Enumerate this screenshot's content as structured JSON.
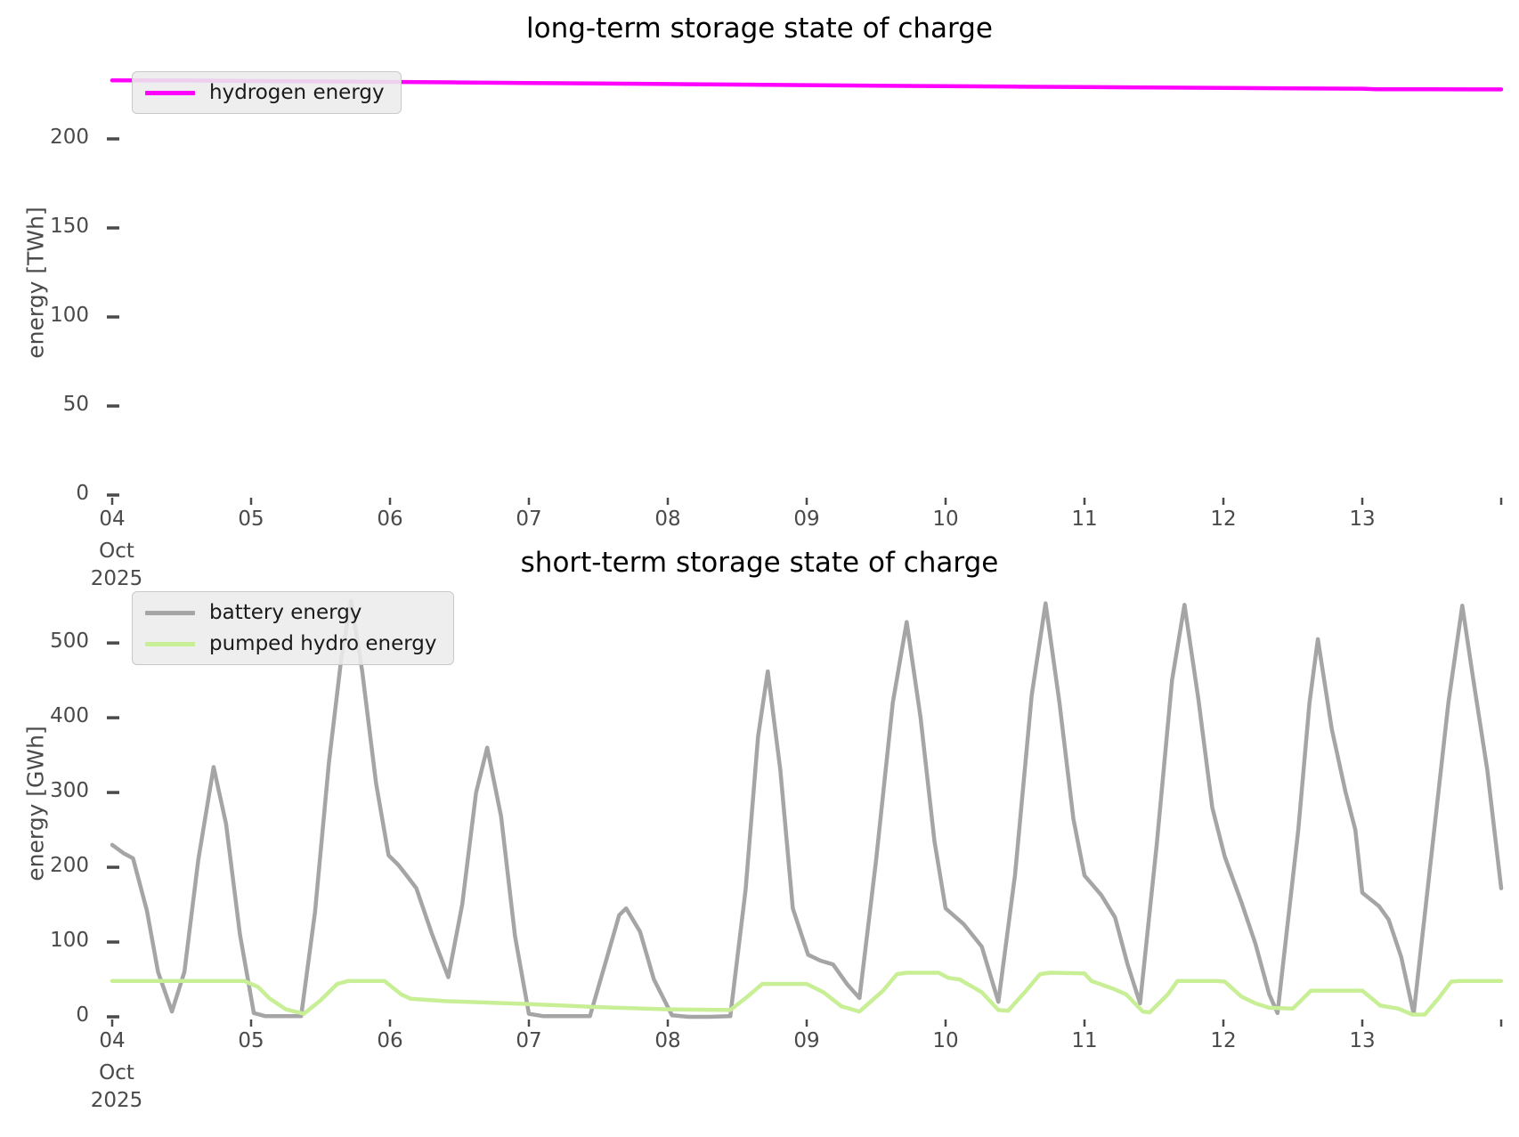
{
  "colors": {
    "hydrogen": "#ff00ff",
    "battery": "#a5a5a5",
    "pumped_hydro": "#c8ef96",
    "tick_label": "#4a4a4a",
    "title": "#000000",
    "legend_bg": "#ececec",
    "legend_border": "#c9c9c9"
  },
  "chart_data": [
    {
      "type": "line",
      "title": "long-term storage state of charge",
      "ylabel": "energy [TWh]",
      "x_unit": "days since 2025-10-04 00:00",
      "x_tick_labels": [
        "04",
        "05",
        "06",
        "07",
        "08",
        "09",
        "10",
        "11",
        "12",
        "13"
      ],
      "x_first_tick_extra": [
        "Oct",
        "2025"
      ],
      "yticks": [
        0,
        50,
        100,
        150,
        200
      ],
      "xlim_days": [
        0,
        10
      ],
      "ylim": [
        0,
        240.5
      ],
      "grid": false,
      "legend_position": "upper-left",
      "series": [
        {
          "name": "hydrogen energy",
          "color_key": "hydrogen",
          "x": [
            0,
            0.5,
            1,
            1.5,
            2,
            2.5,
            3,
            3.5,
            4,
            4.5,
            5,
            5.5,
            6,
            6.5,
            7,
            7.5,
            8,
            8.5,
            9,
            9.1,
            9.5,
            10
          ],
          "values": [
            232.9,
            232.8,
            232.5,
            232.3,
            232.0,
            231.7,
            231.4,
            231.1,
            230.8,
            230.5,
            230.2,
            229.9,
            229.6,
            229.35,
            229.1,
            228.85,
            228.6,
            228.4,
            228.2,
            227.9,
            227.85,
            227.8
          ]
        }
      ]
    },
    {
      "type": "line",
      "title": "short-term storage state of charge",
      "ylabel": "energy [GWh]",
      "x_unit": "days since 2025-10-04 00:00",
      "x_tick_labels": [
        "04",
        "05",
        "06",
        "07",
        "08",
        "09",
        "10",
        "11",
        "12",
        "13"
      ],
      "x_first_tick_extra": [
        "Oct",
        "2025"
      ],
      "yticks": [
        0,
        100,
        200,
        300,
        400,
        500
      ],
      "xlim_days": [
        0,
        10
      ],
      "ylim": [
        0,
        574
      ],
      "grid": false,
      "legend_position": "upper-left",
      "series": [
        {
          "name": "battery energy",
          "color_key": "battery",
          "x": [
            0.0,
            0.08,
            0.15,
            0.25,
            0.33,
            0.43,
            0.52,
            0.62,
            0.73,
            0.82,
            0.92,
            1.02,
            1.1,
            1.25,
            1.36,
            1.46,
            1.56,
            1.65,
            1.72,
            1.8,
            1.9,
            1.99,
            2.06,
            2.12,
            2.19,
            2.3,
            2.42,
            2.52,
            2.62,
            2.7,
            2.8,
            2.9,
            3.0,
            3.1,
            3.3,
            3.44,
            3.56,
            3.65,
            3.7,
            3.8,
            3.9,
            4.03,
            4.15,
            4.3,
            4.45,
            4.56,
            4.65,
            4.72,
            4.81,
            4.9,
            5.01,
            5.1,
            5.19,
            5.29,
            5.38,
            5.5,
            5.62,
            5.72,
            5.82,
            5.92,
            6.0,
            6.13,
            6.26,
            6.38,
            6.5,
            6.62,
            6.72,
            6.82,
            6.92,
            7.0,
            7.12,
            7.22,
            7.31,
            7.4,
            7.52,
            7.63,
            7.72,
            7.82,
            7.92,
            8.01,
            8.13,
            8.23,
            8.33,
            8.39,
            8.54,
            8.62,
            8.68,
            8.78,
            8.88,
            8.95,
            9.0,
            9.12,
            9.19,
            9.28,
            9.37,
            9.5,
            9.62,
            9.72,
            9.8,
            9.9,
            10.0
          ],
          "values": [
            230,
            219,
            212,
            142,
            60,
            7,
            60,
            210,
            334,
            258,
            110,
            5,
            1,
            1,
            1,
            140,
            340,
            480,
            556,
            462,
            312,
            216,
            203,
            189,
            172,
            112,
            53,
            150,
            300,
            360,
            268,
            108,
            4,
            1,
            1,
            1,
            78,
            136,
            145,
            114,
            50,
            2,
            0,
            0,
            1,
            170,
            375,
            462,
            330,
            145,
            83,
            75,
            70,
            44,
            25,
            210,
            420,
            528,
            400,
            235,
            145,
            124,
            94,
            20,
            190,
            430,
            553,
            420,
            265,
            189,
            163,
            133,
            70,
            18,
            230,
            450,
            551,
            425,
            280,
            214,
            153,
            98,
            30,
            5,
            251,
            420,
            505,
            385,
            300,
            250,
            166,
            148,
            130,
            80,
            4,
            220,
            420,
            550,
            450,
            330,
            172
          ]
        },
        {
          "name": "pumped hydro energy",
          "color_key": "pumped_hydro",
          "x": [
            0.0,
            0.95,
            1.05,
            1.13,
            1.25,
            1.38,
            1.5,
            1.62,
            1.7,
            1.96,
            2.08,
            2.15,
            2.4,
            2.7,
            3.0,
            3.5,
            4.0,
            4.45,
            4.58,
            4.68,
            5.0,
            5.12,
            5.25,
            5.38,
            5.55,
            5.65,
            5.72,
            5.95,
            6.02,
            6.1,
            6.26,
            6.38,
            6.45,
            6.58,
            6.68,
            6.75,
            7.0,
            7.05,
            7.2,
            7.3,
            7.42,
            7.47,
            7.6,
            7.67,
            7.95,
            8.01,
            8.13,
            8.23,
            8.33,
            8.5,
            8.63,
            9.0,
            9.13,
            9.26,
            9.36,
            9.45,
            9.55,
            9.64,
            9.7,
            10.0
          ],
          "values": [
            48,
            48,
            40,
            25,
            10,
            4,
            22,
            44,
            48,
            48,
            30,
            24,
            21,
            19,
            17,
            13,
            10,
            9,
            28,
            44,
            44,
            33,
            14,
            7,
            35,
            57,
            59,
            59,
            52,
            50,
            33,
            9,
            8,
            35,
            57,
            59,
            58,
            48,
            38,
            30,
            7,
            6,
            30,
            48,
            48,
            47,
            27,
            18,
            12,
            11,
            35,
            35,
            15,
            11,
            3,
            3,
            25,
            47,
            48,
            48
          ]
        }
      ]
    }
  ]
}
